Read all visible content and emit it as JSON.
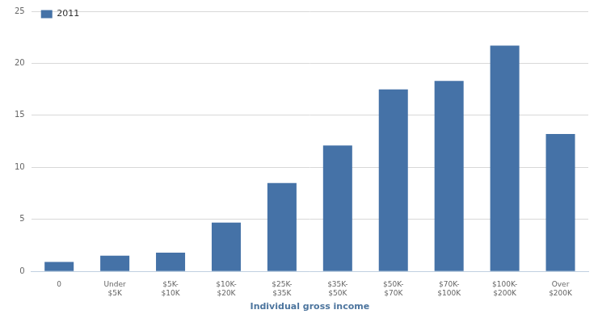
{
  "chart_data": {
    "type": "bar",
    "x_label": "Individual gross income",
    "categories": [
      "0",
      "Under $5K",
      "$5K-$10K",
      "$10K-$20K",
      "$25K-$35K",
      "$35K-$50K",
      "$50K-$70K",
      "$70K-$100K",
      "$100K-$200K",
      "Over $200K"
    ],
    "series": [
      {
        "name": "2011",
        "color": "#4572a7",
        "values": [
          0.9,
          1.5,
          1.8,
          4.7,
          8.5,
          12.1,
          17.5,
          18.3,
          21.7,
          13.2
        ]
      }
    ],
    "ylim": [
      0,
      25
    ],
    "yticks": [
      0,
      5,
      10,
      15,
      20,
      25
    ],
    "grid": true,
    "legend": "upper left"
  }
}
